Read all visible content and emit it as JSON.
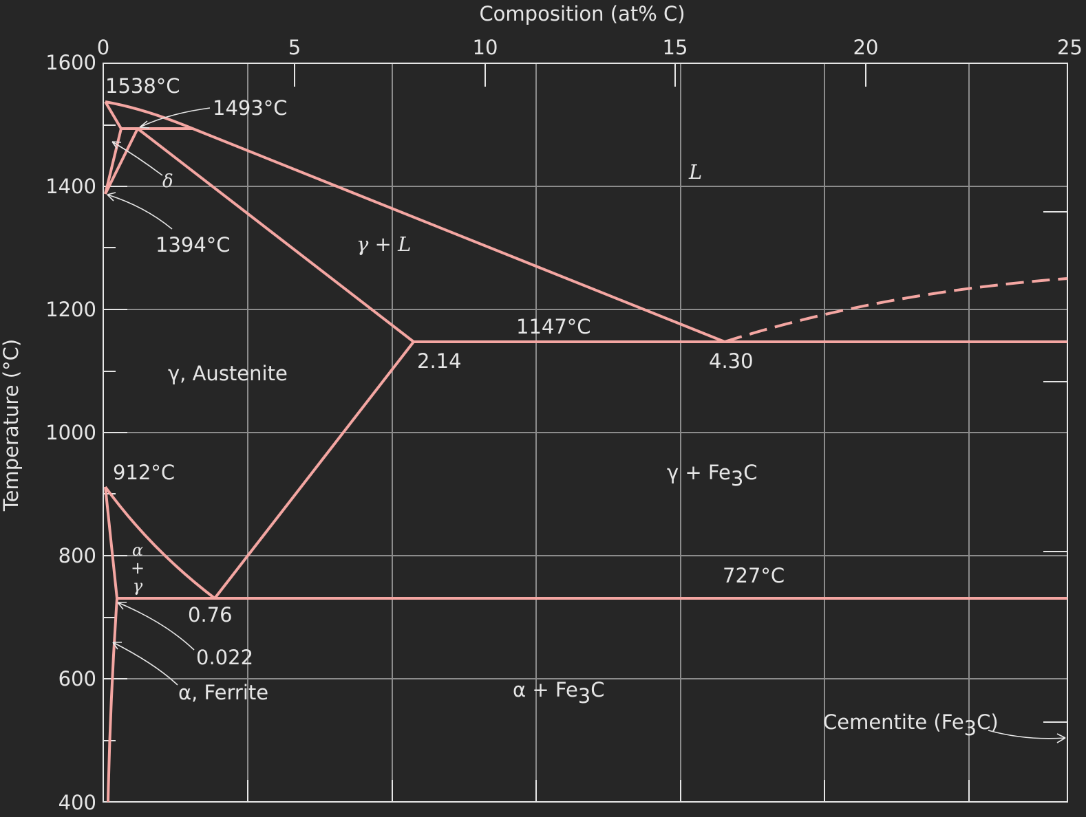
{
  "chart_data": {
    "type": "phase-diagram",
    "top_axis": {
      "label": "Composition (at% C)",
      "ticks": [
        "0",
        "5",
        "10",
        "15",
        "20",
        "25"
      ]
    },
    "y_axis": {
      "label": "Temperature (°C)",
      "ticks": [
        "1600",
        "1400",
        "1200",
        "1000",
        "800",
        "600",
        "400"
      ],
      "ylim": [
        400,
        1600
      ]
    },
    "x_axis_weight_pct": {
      "xlim": [
        0,
        6.7
      ]
    },
    "points": {
      "iron_melting": "1538°C",
      "peritectic": "1493°C",
      "delta_gamma": "1394°C",
      "eutectic_temp": "1147°C",
      "eutectic_gamma": "2.14",
      "eutectic_comp": "4.30",
      "alpha_gamma": "912°C",
      "eutectoid_temp": "727°C",
      "eutectoid_comp": "0.76",
      "alpha_max": "0.022"
    },
    "regions": {
      "liquid": "L",
      "gamma_liquid": "γ + L",
      "delta": "δ",
      "austenite": "γ, Austenite",
      "gamma_cementite_symbol": "γ + Fe",
      "gamma_cementite_sub": "3",
      "gamma_cementite_tail": "C",
      "alpha_gamma_a": "α",
      "alpha_gamma_plus": "+",
      "alpha_gamma_g": "γ",
      "ferrite": "α, Ferrite",
      "alpha_cementite_symbol": "α + Fe",
      "alpha_cementite_sub": "3",
      "alpha_cementite_tail": "C",
      "cementite_label": "Cementite (Fe",
      "cementite_sub": "3",
      "cementite_tail": "C)"
    }
  }
}
